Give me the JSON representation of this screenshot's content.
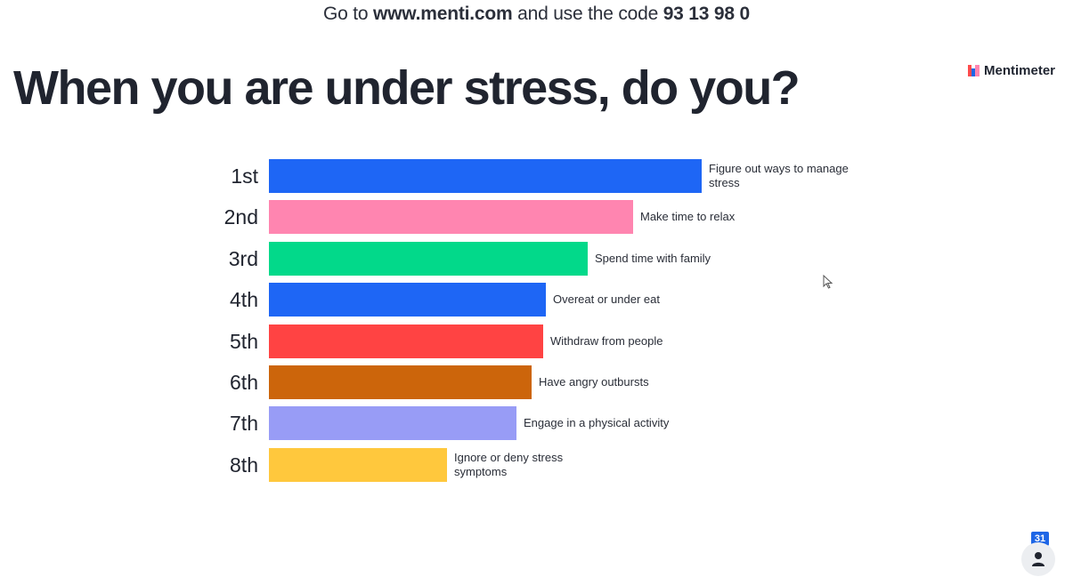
{
  "banner": {
    "prefix": "Go to ",
    "url": "www.menti.com",
    "middle": " and use the code ",
    "code": "93 13 98 0"
  },
  "brand": {
    "name": "Mentimeter",
    "logo_colors": [
      "#ff4b4b",
      "#1e66e6",
      "#ff85b0"
    ]
  },
  "title": "When you are under stress, do you?",
  "chart_data": {
    "type": "bar",
    "orientation": "horizontal",
    "title": "When you are under stress, do you?",
    "categories": [
      "1st",
      "2nd",
      "3rd",
      "4th",
      "5th",
      "6th",
      "7th",
      "8th"
    ],
    "values": [
      486,
      409,
      358,
      311,
      308,
      295,
      278,
      200
    ],
    "labels": [
      "Figure out ways to manage stress",
      "Make time to relax",
      "Spend time with family",
      "Overeat or under eat",
      "Withdraw from people",
      "Have angry outbursts",
      "Engage in a physical activity",
      "Ignore or deny stress symptoms"
    ],
    "colors": [
      "#1e66f5",
      "#ff85b0",
      "#02d98a",
      "#1e66f5",
      "#ff4343",
      "#cc650b",
      "#989cf6",
      "#ffc83d"
    ],
    "grid": false,
    "legend": "none"
  },
  "participants": {
    "count": "31",
    "icon": "person-icon"
  },
  "cursor": {
    "icon": "mouse-pointer-icon"
  }
}
